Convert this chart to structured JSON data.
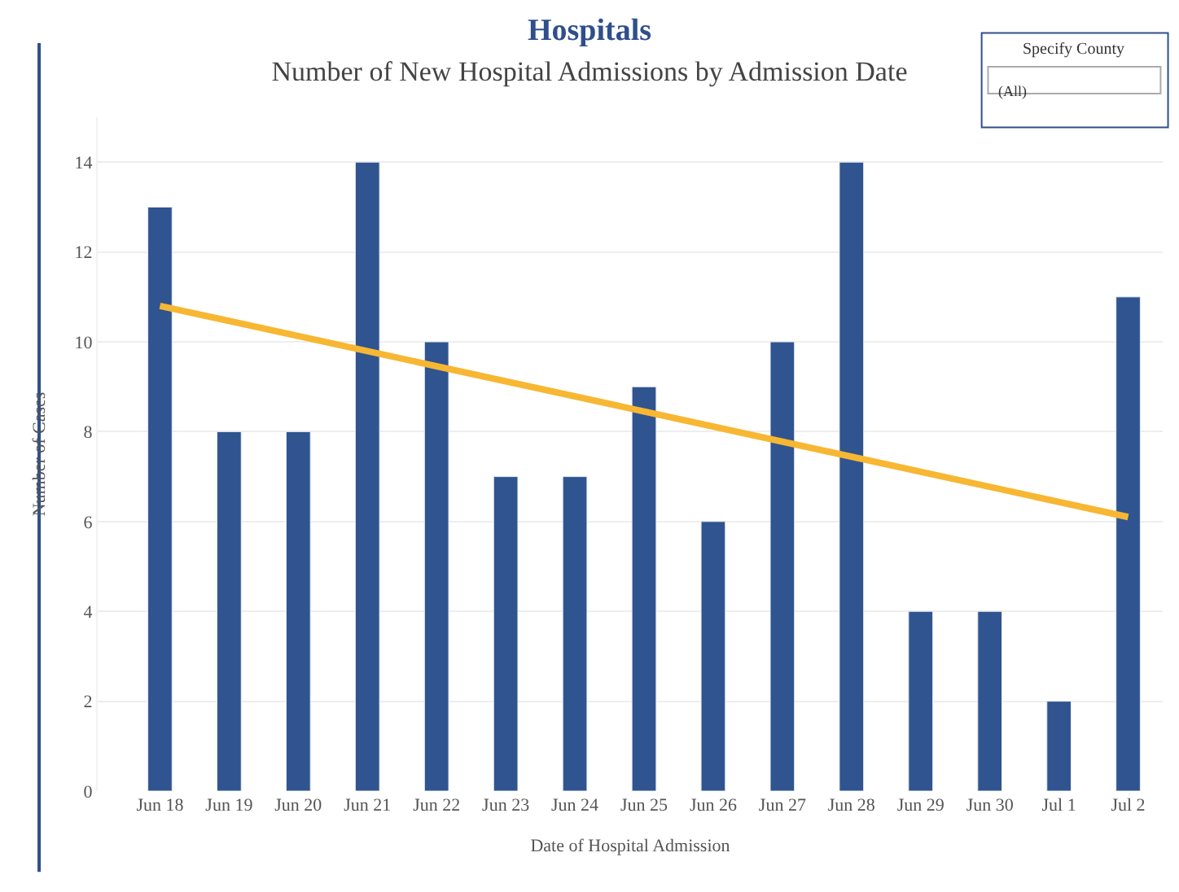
{
  "chart_data": {
    "type": "bar",
    "title": "Hospitals",
    "subtitle": "Number of New Hospital Admissions by Admission Date",
    "xlabel": "Date of Hospital Admission",
    "ylabel": "Number of Cases",
    "categories": [
      "Jun 18",
      "Jun 19",
      "Jun 20",
      "Jun 21",
      "Jun 22",
      "Jun 23",
      "Jun 24",
      "Jun 25",
      "Jun 26",
      "Jun 27",
      "Jun 28",
      "Jun 29",
      "Jun 30",
      "Jul 1",
      "Jul 2"
    ],
    "series": [
      {
        "color": "#30548f",
        "values": [
          13,
          8,
          8,
          14,
          10,
          7,
          7,
          9,
          6,
          10,
          14,
          4,
          4,
          2,
          11
        ]
      },
      {
        "type": "line",
        "color": "#f7b733",
        "x": [
          "Jun 18",
          "Jul 2"
        ],
        "values": [
          10.8,
          6.1
        ]
      }
    ],
    "ylim": [
      0,
      15
    ],
    "yticks": [
      0,
      2,
      4,
      6,
      8,
      10,
      12,
      14
    ],
    "grid": "y",
    "annotations": [
      "Specify County",
      "(All)"
    ]
  }
}
